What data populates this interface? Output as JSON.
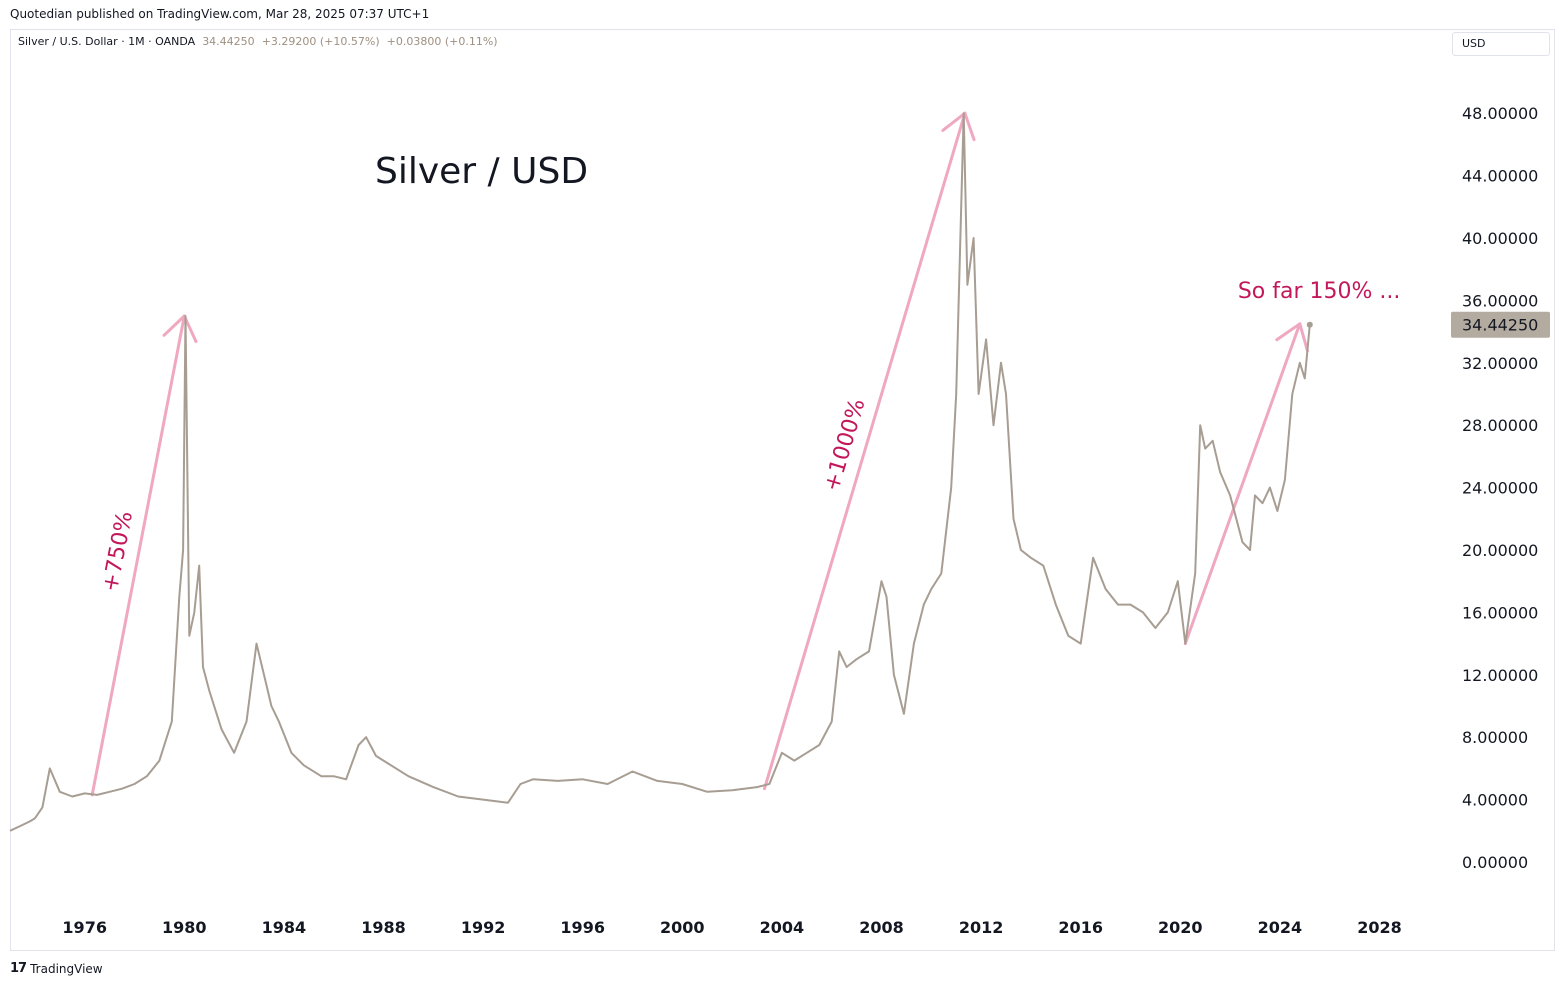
{
  "header": {
    "published": "Quotedian published on TradingView.com, Mar 28, 2025 07:37 UTC+1"
  },
  "legend": {
    "symbol": "Silver / U.S. Dollar · 1M · OANDA",
    "last": "34.44250",
    "change": "+3.29200 (+10.57%)",
    "spread": "+0.03800 (+0.11%)"
  },
  "currency_button": "USD",
  "footer": {
    "brand": "TradingView",
    "logo": "17"
  },
  "colors": {
    "line": "#a79d92",
    "arrow": "#f0a8c0",
    "annotation": "#c2185b",
    "price_tag": "#b3aaa0"
  },
  "chart_data": {
    "type": "line",
    "title": "Silver / USD",
    "series": [
      {
        "name": "",
        "x": [
          1973.0,
          1973.4,
          1973.8,
          1974.0,
          1974.3,
          1974.6,
          1975.0,
          1975.5,
          1976.0,
          1976.5,
          1977.0,
          1977.5,
          1978.0,
          1978.5,
          1979.0,
          1979.5,
          1979.8,
          1979.95,
          1980.05,
          1980.2,
          1980.4,
          1980.6,
          1980.75,
          1981.0,
          1981.5,
          1982.0,
          1982.5,
          1982.9,
          1983.2,
          1983.5,
          1983.8,
          1984.3,
          1984.8,
          1985.5,
          1986.0,
          1986.5,
          1987.0,
          1987.3,
          1987.7,
          1988.0,
          1989.0,
          1990.0,
          1991.0,
          1992.0,
          1993.0,
          1993.5,
          1994.0,
          1995.0,
          1996.0,
          1997.0,
          1998.0,
          1999.0,
          2000.0,
          2001.0,
          2002.0,
          2003.0,
          2003.5,
          2004.0,
          2004.5,
          2005.0,
          2005.5,
          2006.0,
          2006.3,
          2006.6,
          2007.0,
          2007.5,
          2008.0,
          2008.2,
          2008.5,
          2008.9,
          2009.3,
          2009.7,
          2010.0,
          2010.4,
          2010.8,
          2011.0,
          2011.3,
          2011.45,
          2011.7,
          2011.9,
          2012.2,
          2012.5,
          2012.8,
          2013.0,
          2013.3,
          2013.6,
          2014.0,
          2014.5,
          2015.0,
          2015.5,
          2016.0,
          2016.5,
          2017.0,
          2017.5,
          2018.0,
          2018.5,
          2019.0,
          2019.5,
          2019.9,
          2020.2,
          2020.6,
          2020.8,
          2021.0,
          2021.3,
          2021.6,
          2022.0,
          2022.5,
          2022.8,
          2023.0,
          2023.3,
          2023.6,
          2023.9,
          2024.2,
          2024.5,
          2024.8,
          2025.0,
          2025.2
        ],
        "values": [
          2.0,
          2.3,
          2.6,
          2.8,
          3.5,
          6.0,
          4.5,
          4.2,
          4.4,
          4.3,
          4.5,
          4.7,
          5.0,
          5.5,
          6.5,
          9.0,
          17.0,
          20.0,
          35.0,
          14.5,
          16.0,
          19.0,
          12.5,
          11.0,
          8.5,
          7.0,
          9.0,
          14.0,
          12.0,
          10.0,
          9.0,
          7.0,
          6.2,
          5.5,
          5.5,
          5.3,
          7.5,
          8.0,
          6.8,
          6.5,
          5.5,
          4.8,
          4.2,
          4.0,
          3.8,
          5.0,
          5.3,
          5.2,
          5.3,
          5.0,
          5.8,
          5.2,
          5.0,
          4.5,
          4.6,
          4.8,
          5.0,
          7.0,
          6.5,
          7.0,
          7.5,
          9.0,
          13.5,
          12.5,
          13.0,
          13.5,
          18.0,
          17.0,
          12.0,
          9.5,
          14.0,
          16.5,
          17.5,
          18.5,
          24.0,
          30.0,
          48.0,
          37.0,
          40.0,
          30.0,
          33.5,
          28.0,
          32.0,
          30.0,
          22.0,
          20.0,
          19.5,
          19.0,
          16.5,
          14.5,
          14.0,
          19.5,
          17.5,
          16.5,
          16.5,
          16.0,
          15.0,
          16.0,
          18.0,
          14.0,
          18.5,
          28.0,
          26.5,
          27.0,
          25.0,
          23.5,
          20.5,
          20.0,
          23.5,
          23.0,
          24.0,
          22.5,
          24.5,
          30.0,
          32.0,
          31.0,
          34.4425
        ]
      }
    ],
    "annotations": [
      {
        "text": "+750%",
        "x_start": 1976.3,
        "y_start": 4.3,
        "x_end": 1980.0,
        "y_end": 35.0
      },
      {
        "text": "+1000%",
        "x_start": 2003.3,
        "y_start": 4.7,
        "x_end": 2011.35,
        "y_end": 48.0
      },
      {
        "text": "So far 150% ...",
        "x_start": 2020.2,
        "y_start": 14.0,
        "x_end": 2024.8,
        "y_end": 34.5
      }
    ],
    "last_price_label": "34.44250",
    "xlim": [
      1973.0,
      2030.0
    ],
    "ylim": [
      0,
      50
    ],
    "x_ticks": [
      "1976",
      "1980",
      "1984",
      "1988",
      "1992",
      "1996",
      "2000",
      "2004",
      "2008",
      "2012",
      "2016",
      "2020",
      "2024",
      "2028"
    ],
    "y_ticks": [
      "0.00000",
      "4.00000",
      "8.00000",
      "12.00000",
      "16.00000",
      "20.00000",
      "24.00000",
      "28.00000",
      "32.00000",
      "36.00000",
      "40.00000",
      "44.00000",
      "48.00000"
    ],
    "xlabel": "",
    "ylabel": "",
    "grid": false,
    "legend": "top-left"
  }
}
